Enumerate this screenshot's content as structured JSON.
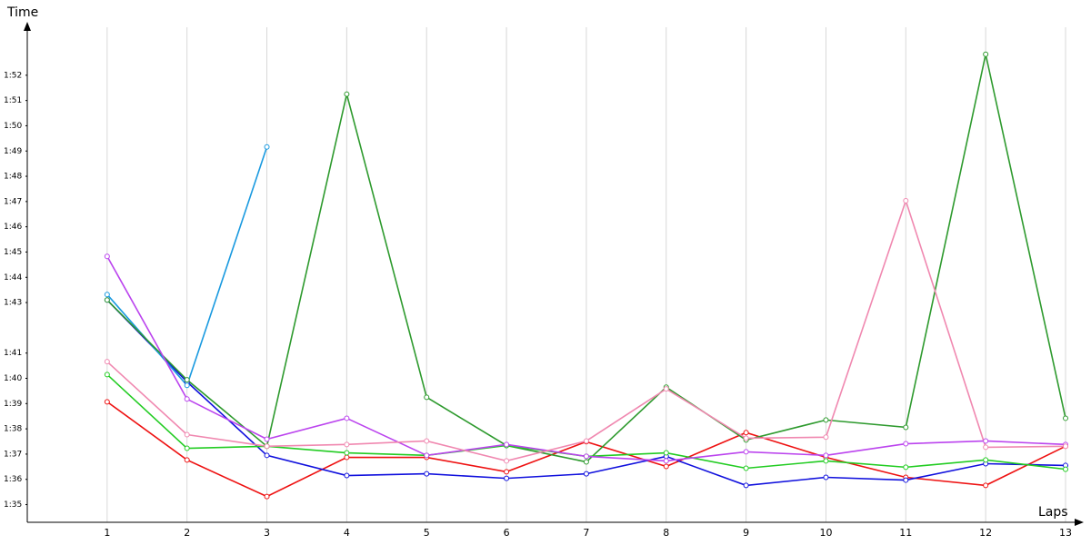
{
  "chart_data": {
    "type": "line",
    "y_label": "Time",
    "x_label": "Laps",
    "x": [
      1,
      2,
      3,
      4,
      5,
      6,
      7,
      8,
      9,
      10,
      11,
      12,
      13
    ],
    "xlim": [
      0,
      13
    ],
    "xticks": [
      1,
      2,
      3,
      4,
      5,
      6,
      7,
      8,
      9,
      10,
      11,
      12,
      13
    ],
    "ylim": [
      94.3,
      113.9
    ],
    "yticks": [
      {
        "value": 95,
        "label": "1:35"
      },
      {
        "value": 96,
        "label": "1:36"
      },
      {
        "value": 97,
        "label": "1:37"
      },
      {
        "value": 98,
        "label": "1:38"
      },
      {
        "value": 99,
        "label": "1:39"
      },
      {
        "value": 100,
        "label": "1:40"
      },
      {
        "value": 101,
        "label": "1:41"
      },
      {
        "value": 103,
        "label": "1:43"
      },
      {
        "value": 104,
        "label": "1:44"
      },
      {
        "value": 105,
        "label": "1:45"
      },
      {
        "value": 106,
        "label": "1:46"
      },
      {
        "value": 107,
        "label": "1:47"
      },
      {
        "value": 108,
        "label": "1:48"
      },
      {
        "value": 109,
        "label": "1:49"
      },
      {
        "value": 110,
        "label": "1:50"
      },
      {
        "value": 111,
        "label": "1:51"
      },
      {
        "value": 112,
        "label": "1:52"
      }
    ],
    "grid": "x",
    "series": [
      {
        "color": "#ee1111",
        "values": [
          99.07,
          96.77,
          95.32,
          96.87,
          96.87,
          96.3,
          97.49,
          96.51,
          97.85,
          96.87,
          96.08,
          95.76,
          97.31
        ]
      },
      {
        "color": "#1010dd",
        "values": [
          103.1,
          99.86,
          96.95,
          96.15,
          96.22,
          96.04,
          96.22,
          96.91,
          95.76,
          96.08,
          95.97,
          96.62,
          96.55
        ]
      },
      {
        "color": "#1a9ae0",
        "values": [
          103.32,
          99.72,
          109.16,
          null,
          null,
          null,
          null,
          null,
          null,
          null,
          null,
          null,
          null
        ]
      },
      {
        "color": "#2e9a2e",
        "values": [
          103.1,
          99.94,
          97.31,
          111.25,
          99.25,
          97.34,
          96.69,
          99.65,
          97.56,
          98.35,
          98.06,
          112.83,
          98.42
        ]
      },
      {
        "color": "#22cc22",
        "values": [
          100.15,
          97.23,
          97.31,
          97.05,
          96.95,
          97.34,
          96.91,
          97.05,
          96.44,
          96.73,
          96.48,
          96.77,
          96.4
        ]
      },
      {
        "color": "#bb44ee",
        "values": [
          104.83,
          99.18,
          97.59,
          98.42,
          96.95,
          97.38,
          96.91,
          96.73,
          97.09,
          96.95,
          97.41,
          97.52,
          97.38
        ]
      },
      {
        "color": "#f088b0",
        "values": [
          100.66,
          97.77,
          97.31,
          97.38,
          97.52,
          96.73,
          97.52,
          99.58,
          97.63,
          97.67,
          107.03,
          97.27,
          97.31
        ]
      }
    ]
  }
}
